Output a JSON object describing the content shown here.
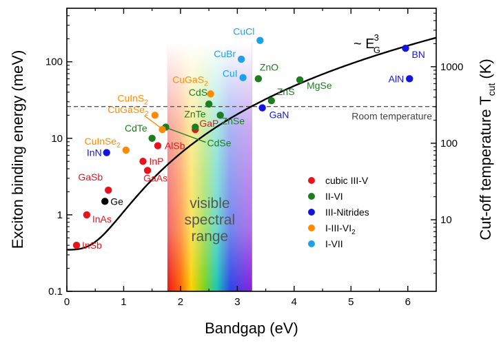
{
  "chart_data": {
    "type": "scatter",
    "xlabel": "Bandgap (eV)",
    "ylabel": "Exciton binding energy (meV)",
    "y2label": "Cut-off temperature T",
    "y2label_sub": "cut",
    "y2label_unit": "(K)",
    "xlim": [
      0,
      6.5
    ],
    "ylim": [
      0.1,
      500
    ],
    "yscale": "log",
    "x_ticks": [
      "0",
      "1",
      "2",
      "3",
      "4",
      "5",
      "6"
    ],
    "y_ticks": [
      "0.1",
      "1",
      "10",
      "100"
    ],
    "y2_ticks": [
      "10",
      "100",
      "1000"
    ],
    "room_temperature_line": {
      "y": 26,
      "label": "Room temperature"
    },
    "fit_curve": {
      "label": "~ E",
      "label_sup": "3",
      "label_sub": "G",
      "exponent": 3,
      "coefficient": 0.75,
      "offset": 0.35
    },
    "visible_range": {
      "x_range": [
        1.77,
        3.26
      ],
      "label": [
        "visible",
        "spectral",
        "range"
      ]
    },
    "legend": {
      "position": "center-right",
      "items": [
        {
          "name": "cubic III-V",
          "color": "#e8141c"
        },
        {
          "name": "II-VI",
          "color": "#1e7d1e"
        },
        {
          "name": "III-Nitrides",
          "color": "#1414e0"
        },
        {
          "name": "I-III-VI",
          "name_sub": "2",
          "color": "#ff8c00"
        },
        {
          "name": "I-VII",
          "color": "#1e9fe8"
        }
      ]
    },
    "series": [
      {
        "name": "cubic III-V",
        "color": "#e8141c",
        "points": [
          {
            "label": "InSb",
            "x": 0.17,
            "y": 0.4
          },
          {
            "label": "InAs",
            "x": 0.35,
            "y": 1.0
          },
          {
            "label": "GaSb",
            "x": 0.73,
            "y": 2.1
          },
          {
            "label": "InP",
            "x": 1.34,
            "y": 5.0
          },
          {
            "label": "GaAs",
            "x": 1.42,
            "y": 3.8
          },
          {
            "label": "AlSb",
            "x": 1.6,
            "y": 8.0
          },
          {
            "label": "GaP",
            "x": 2.26,
            "y": 13.0
          }
        ]
      },
      {
        "name": "Ge",
        "color": "#000000",
        "points": [
          {
            "label": "Ge",
            "x": 0.67,
            "y": 1.5
          }
        ]
      },
      {
        "name": "II-VI",
        "color": "#1e7d1e",
        "points": [
          {
            "label": "CdTe",
            "x": 1.5,
            "y": 10.0
          },
          {
            "label": "CdSe",
            "x": 1.74,
            "y": 14.0
          },
          {
            "label": "ZnTe",
            "x": 2.26,
            "y": 14.0
          },
          {
            "label": "ZnSe",
            "x": 2.7,
            "y": 20.0
          },
          {
            "label": "CdS",
            "x": 2.5,
            "y": 28.0
          },
          {
            "label": "ZnS",
            "x": 3.6,
            "y": 31.0
          },
          {
            "label": "ZnO",
            "x": 3.37,
            "y": 60.0
          },
          {
            "label": "MgSe",
            "x": 4.1,
            "y": 58.0
          }
        ]
      },
      {
        "name": "III-Nitrides",
        "color": "#1414e0",
        "points": [
          {
            "label": "InN",
            "x": 0.7,
            "y": 6.5
          },
          {
            "label": "GaN",
            "x": 3.44,
            "y": 25.0
          },
          {
            "label": "AlN",
            "x": 6.03,
            "y": 60.0
          },
          {
            "label": "BN",
            "x": 5.96,
            "y": 150.0
          }
        ]
      },
      {
        "name": "I-III-VI2",
        "color": "#ff8c00",
        "points": [
          {
            "label": "CuInSe2",
            "label_sub_index": 6,
            "x": 1.04,
            "y": 7.0
          },
          {
            "label": "CuGaSe2",
            "label_sub_index": 6,
            "x": 1.68,
            "y": 13.0
          },
          {
            "label": "CuInS2",
            "label_sub_index": 5,
            "x": 1.55,
            "y": 20.0
          },
          {
            "label": "CuGaS2",
            "label_sub_index": 5,
            "x": 2.53,
            "y": 38.0
          }
        ]
      },
      {
        "name": "I-VII",
        "color": "#1e9fe8",
        "points": [
          {
            "label": "CuCl",
            "x": 3.4,
            "y": 190.0
          },
          {
            "label": "CuBr",
            "x": 3.07,
            "y": 108.0
          },
          {
            "label": "CuI",
            "x": 3.1,
            "y": 62.0
          }
        ]
      }
    ]
  }
}
